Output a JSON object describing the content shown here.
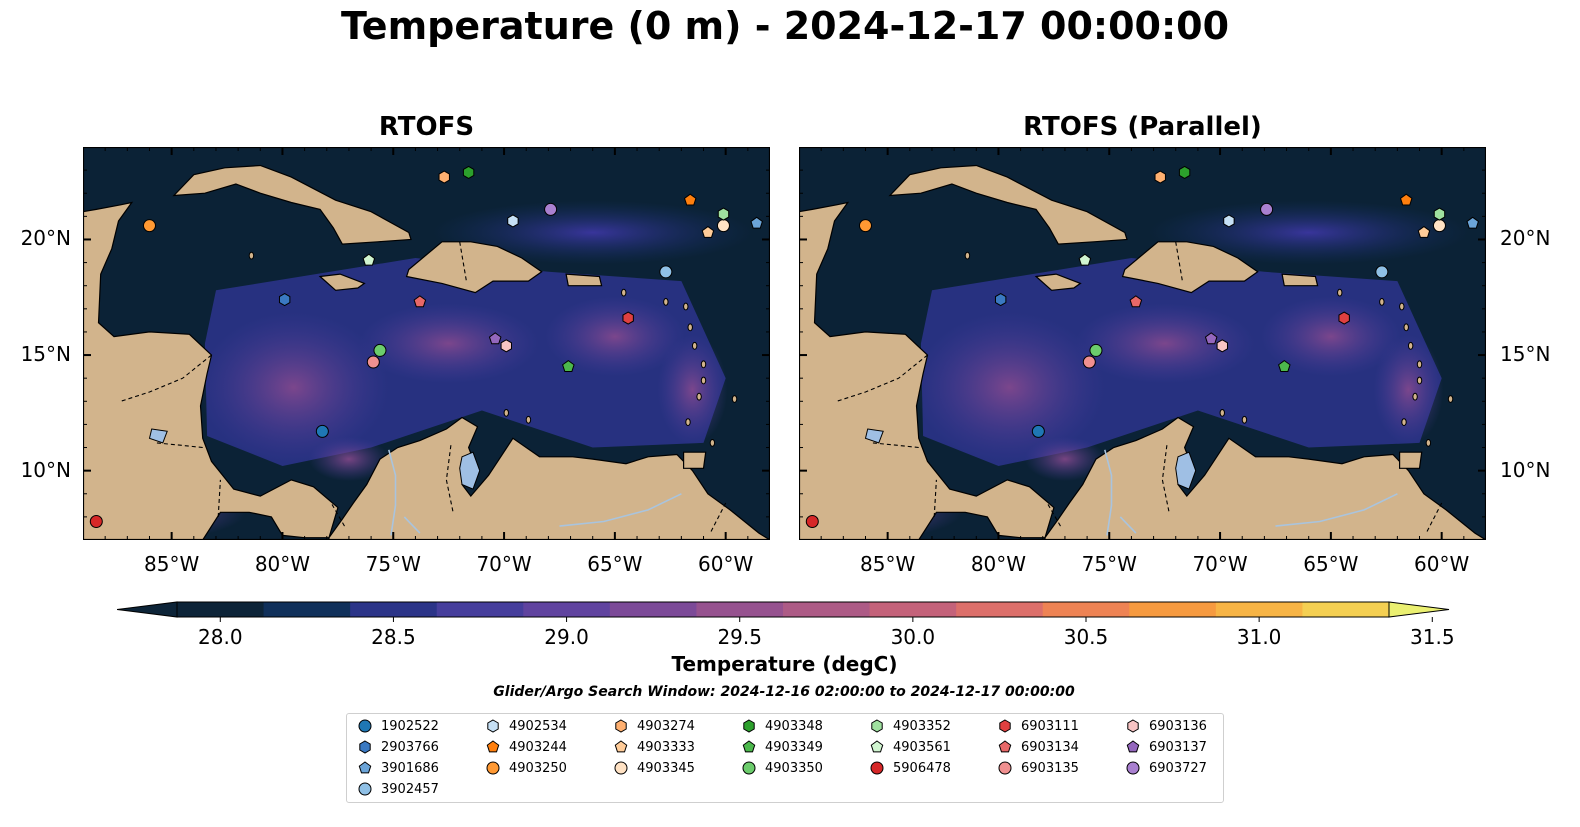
{
  "title": "Temperature (0 m) - 2024-12-17 00:00:00",
  "panels": [
    {
      "title": "RTOFS"
    },
    {
      "title": "RTOFS (Parallel)"
    }
  ],
  "map": {
    "lon_range": [
      -89,
      -58
    ],
    "lat_range": [
      7,
      24
    ],
    "x_ticks": [
      {
        "lon": -85,
        "label": "85°W"
      },
      {
        "lon": -80,
        "label": "80°W"
      },
      {
        "lon": -75,
        "label": "75°W"
      },
      {
        "lon": -70,
        "label": "70°W"
      },
      {
        "lon": -65,
        "label": "65°W"
      },
      {
        "lon": -60,
        "label": "60°W"
      }
    ],
    "y_ticks": [
      {
        "lat": 20,
        "label": "20°N"
      },
      {
        "lat": 15,
        "label": "15°N"
      },
      {
        "lat": 10,
        "label": "10°N"
      }
    ],
    "colors": {
      "ocean_dark": "#0b2236",
      "land": "#d2b48c",
      "lake": "#9fbfe4",
      "river": "#a9c4de"
    }
  },
  "colorbar": {
    "label": "Temperature (degC)",
    "min": 28.0,
    "max": 31.5,
    "ticks": [
      "28.0",
      "28.5",
      "29.0",
      "29.5",
      "30.0",
      "30.5",
      "31.0",
      "31.5"
    ],
    "colors": [
      "#0d2438",
      "#10305a",
      "#2b3488",
      "#463e9c",
      "#60439f",
      "#7c4a98",
      "#96528f",
      "#ad5b86",
      "#c4627a",
      "#dc6f6a",
      "#ee8354",
      "#f69a40",
      "#f7b445",
      "#f4cf52",
      "#ebf071"
    ]
  },
  "search_window": "Glider/Argo Search Window: 2024-12-16 02:00:00 to 2024-12-17 00:00:00",
  "legend": [
    {
      "id": "1902522",
      "marker": "circle",
      "color": "#1f77b4"
    },
    {
      "id": "2903766",
      "marker": "hexagon",
      "color": "#3a79c2"
    },
    {
      "id": "3901686",
      "marker": "pentagon",
      "color": "#6ba4d8"
    },
    {
      "id": "3902457",
      "marker": "circle",
      "color": "#8fc0e6"
    },
    {
      "id": "4902534",
      "marker": "hexagon",
      "color": "#c6e0f5"
    },
    {
      "id": "4903244",
      "marker": "pentagon",
      "color": "#ff7f0e"
    },
    {
      "id": "4903250",
      "marker": "circle",
      "color": "#ff9933"
    },
    {
      "id": "4903274",
      "marker": "hexagon",
      "color": "#ffb070"
    },
    {
      "id": "4903333",
      "marker": "pentagon",
      "color": "#ffcc99"
    },
    {
      "id": "4903345",
      "marker": "circle",
      "color": "#ffe2c4"
    },
    {
      "id": "4903348",
      "marker": "hexagon",
      "color": "#2ca02c"
    },
    {
      "id": "4903349",
      "marker": "pentagon",
      "color": "#4cb84c"
    },
    {
      "id": "4903350",
      "marker": "circle",
      "color": "#6ccc6c"
    },
    {
      "id": "4903352",
      "marker": "hexagon",
      "color": "#9fe09f"
    },
    {
      "id": "4903561",
      "marker": "pentagon",
      "color": "#d0f5d0"
    },
    {
      "id": "5906478",
      "marker": "circle",
      "color": "#d62728"
    },
    {
      "id": "6903111",
      "marker": "hexagon",
      "color": "#e04040"
    },
    {
      "id": "6903134",
      "marker": "pentagon",
      "color": "#e86868"
    },
    {
      "id": "6903135",
      "marker": "circle",
      "color": "#f09090"
    },
    {
      "id": "6903136",
      "marker": "hexagon",
      "color": "#f8c4c4"
    },
    {
      "id": "6903137",
      "marker": "pentagon",
      "color": "#9467bd"
    },
    {
      "id": "6903727",
      "marker": "circle",
      "color": "#a980d0"
    }
  ],
  "floats": [
    {
      "id": "1902522",
      "lon": -78.2,
      "lat": 11.7
    },
    {
      "id": "2903766",
      "lon": -79.9,
      "lat": 17.4
    },
    {
      "id": "3901686",
      "lon": -58.6,
      "lat": 20.7
    },
    {
      "id": "3902457",
      "lon": -62.7,
      "lat": 18.6
    },
    {
      "id": "4902534",
      "lon": -69.6,
      "lat": 20.8
    },
    {
      "id": "4903244",
      "lon": -61.6,
      "lat": 21.7
    },
    {
      "id": "4903250",
      "lon": -86.0,
      "lat": 20.6
    },
    {
      "id": "4903274",
      "lon": -72.7,
      "lat": 22.7
    },
    {
      "id": "4903333",
      "lon": -60.8,
      "lat": 20.3
    },
    {
      "id": "4903345",
      "lon": -60.1,
      "lat": 20.6
    },
    {
      "id": "4903348",
      "lon": -71.6,
      "lat": 22.9
    },
    {
      "id": "4903349",
      "lon": -67.1,
      "lat": 14.5
    },
    {
      "id": "4903350",
      "lon": -75.6,
      "lat": 15.2
    },
    {
      "id": "4903352",
      "lon": -60.1,
      "lat": 21.1
    },
    {
      "id": "4903561",
      "lon": -76.1,
      "lat": 19.1
    },
    {
      "id": "5906478",
      "lon": -88.4,
      "lat": 7.8
    },
    {
      "id": "6903111",
      "lon": -64.4,
      "lat": 16.6
    },
    {
      "id": "6903134",
      "lon": -73.8,
      "lat": 17.3
    },
    {
      "id": "6903135",
      "lon": -75.9,
      "lat": 14.7
    },
    {
      "id": "6903136",
      "lon": -69.9,
      "lat": 15.4
    },
    {
      "id": "6903137",
      "lon": -70.4,
      "lat": 15.7
    },
    {
      "id": "6903727",
      "lon": -67.9,
      "lat": 21.3
    }
  ]
}
